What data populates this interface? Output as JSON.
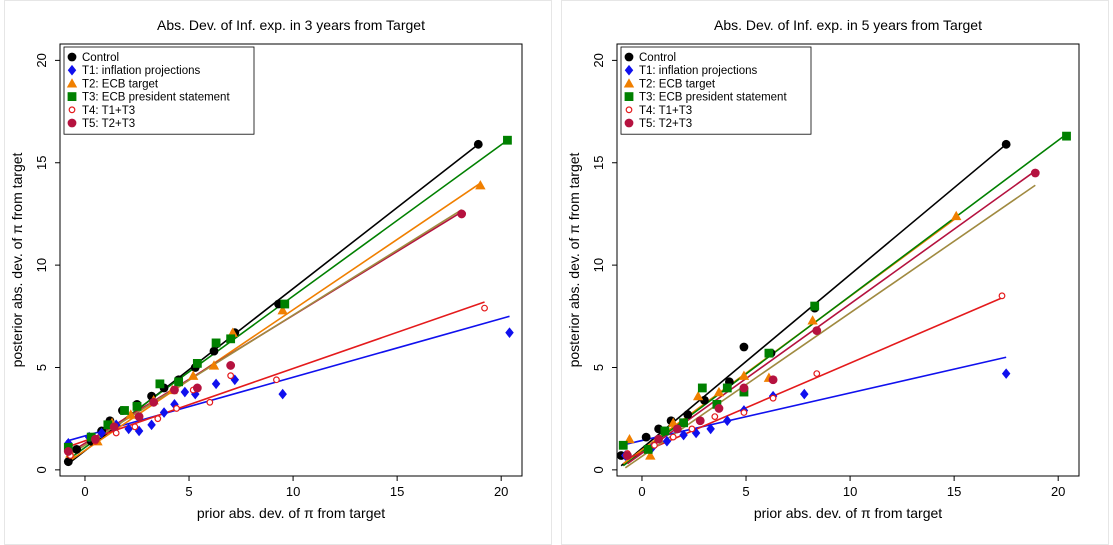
{
  "chart_data": [
    {
      "type": "scatter",
      "title": "Abs. Dev. of Inf. exp. in 3 years from Target",
      "xlabel": "prior abs. dev. of π from target",
      "ylabel": "posterior abs. dev. of π from target",
      "xlim": [
        -1.2,
        21
      ],
      "ylim": [
        -0.3,
        20.8
      ],
      "xticks": [
        0,
        5,
        10,
        15,
        20
      ],
      "yticks": [
        0,
        5,
        10,
        15,
        20
      ],
      "grid": false,
      "legend_position": "top-left",
      "series": [
        {
          "name": "Control",
          "color": "#000000",
          "marker": "circle",
          "points": [
            [
              -0.8,
              0.4
            ],
            [
              -0.4,
              1.0
            ],
            [
              0.3,
              1.4
            ],
            [
              0.8,
              1.9
            ],
            [
              1.2,
              2.4
            ],
            [
              1.8,
              2.9
            ],
            [
              2.5,
              3.2
            ],
            [
              3.2,
              3.6
            ],
            [
              3.8,
              4.0
            ],
            [
              4.5,
              4.4
            ],
            [
              5.3,
              5.0
            ],
            [
              6.2,
              5.8
            ],
            [
              7.2,
              6.7
            ],
            [
              9.3,
              8.1
            ],
            [
              18.9,
              15.9
            ]
          ],
          "fit": [
            [
              -0.8,
              0.3
            ],
            [
              18.9,
              15.9
            ]
          ]
        },
        {
          "name": "T1: inflation projections",
          "color": "#1010ee",
          "marker": "diamond",
          "points": [
            [
              -0.8,
              1.3
            ],
            [
              0.2,
              1.6
            ],
            [
              0.8,
              1.8
            ],
            [
              1.5,
              2.2
            ],
            [
              2.1,
              2.0
            ],
            [
              2.6,
              1.9
            ],
            [
              3.2,
              2.2
            ],
            [
              3.8,
              2.8
            ],
            [
              4.3,
              3.2
            ],
            [
              4.8,
              3.8
            ],
            [
              5.3,
              3.7
            ],
            [
              6.3,
              4.2
            ],
            [
              7.2,
              4.4
            ],
            [
              9.5,
              3.7
            ],
            [
              20.4,
              6.7
            ]
          ],
          "fit": [
            [
              -0.9,
              1.4
            ],
            [
              20.4,
              7.5
            ]
          ]
        },
        {
          "name": "T2: ECB target",
          "color": "#f07f00",
          "marker": "triangle",
          "points": [
            [
              -0.7,
              0.8
            ],
            [
              0.6,
              1.4
            ],
            [
              1.3,
              2.3
            ],
            [
              2.2,
              2.7
            ],
            [
              3.3,
              3.4
            ],
            [
              4.2,
              3.9
            ],
            [
              5.2,
              4.6
            ],
            [
              6.2,
              5.1
            ],
            [
              7.1,
              6.7
            ],
            [
              9.5,
              7.8
            ],
            [
              19.0,
              13.9
            ]
          ],
          "fit": [
            [
              -0.8,
              0.4
            ],
            [
              19.0,
              14.0
            ]
          ]
        },
        {
          "name": "T3: ECB president statement",
          "color": "#008000",
          "marker": "square",
          "points": [
            [
              -0.8,
              1.1
            ],
            [
              0.3,
              1.6
            ],
            [
              1.1,
              2.2
            ],
            [
              1.9,
              2.9
            ],
            [
              2.5,
              3.1
            ],
            [
              3.6,
              4.2
            ],
            [
              4.5,
              4.3
            ],
            [
              5.4,
              5.2
            ],
            [
              6.3,
              6.2
            ],
            [
              7.0,
              6.4
            ],
            [
              9.6,
              8.1
            ],
            [
              20.3,
              16.1
            ]
          ],
          "fit": [
            [
              -0.8,
              0.5
            ],
            [
              20.3,
              16.1
            ]
          ]
        },
        {
          "name": "T4: T1+T3",
          "color": "#e41a1c",
          "marker": "hollow-circle",
          "points": [
            [
              -0.7,
              0.7
            ],
            [
              0.5,
              1.4
            ],
            [
              1.5,
              1.8
            ],
            [
              2.4,
              2.1
            ],
            [
              3.5,
              2.5
            ],
            [
              4.4,
              3.0
            ],
            [
              5.2,
              3.9
            ],
            [
              6.0,
              3.3
            ],
            [
              7.0,
              4.6
            ],
            [
              9.2,
              4.4
            ],
            [
              19.2,
              7.9
            ]
          ],
          "fit": [
            [
              -0.9,
              1.1
            ],
            [
              19.2,
              8.2
            ]
          ]
        },
        {
          "name": "T5: T2+T3",
          "color": "#b5123f",
          "marker": "circle",
          "points": [
            [
              -0.8,
              0.9
            ],
            [
              0.5,
              1.5
            ],
            [
              1.4,
              2.1
            ],
            [
              2.6,
              2.6
            ],
            [
              3.3,
              3.3
            ],
            [
              4.3,
              3.9
            ],
            [
              5.4,
              4.0
            ],
            [
              7.0,
              5.1
            ],
            [
              18.1,
              12.5
            ]
          ],
          "fit": [
            [
              -0.8,
              0.8
            ],
            [
              18.1,
              12.6
            ]
          ]
        },
        {
          "name": "",
          "color": "#a08a40",
          "marker": "none",
          "points": [],
          "fit": [
            [
              -0.8,
              0.7
            ],
            [
              18.1,
              12.7
            ]
          ]
        }
      ]
    },
    {
      "type": "scatter",
      "title": "Abs. Dev. of Inf. exp. in 5 years from Target",
      "xlabel": "prior abs. dev. of π from target",
      "ylabel": "posterior abs. dev. of π from target",
      "xlim": [
        -1.2,
        21
      ],
      "ylim": [
        -0.3,
        20.8
      ],
      "xticks": [
        0,
        5,
        10,
        15,
        20
      ],
      "yticks": [
        0,
        5,
        10,
        15,
        20
      ],
      "grid": false,
      "legend_position": "top-left",
      "series": [
        {
          "name": "Control",
          "color": "#000000",
          "marker": "circle",
          "points": [
            [
              -1.0,
              0.7
            ],
            [
              0.2,
              1.6
            ],
            [
              0.8,
              2.0
            ],
            [
              1.4,
              2.4
            ],
            [
              2.2,
              2.7
            ],
            [
              3.0,
              3.4
            ],
            [
              4.2,
              4.3
            ],
            [
              4.9,
              6.0
            ],
            [
              6.2,
              5.7
            ],
            [
              8.3,
              7.9
            ],
            [
              17.5,
              15.9
            ]
          ],
          "fit": [
            [
              -1.0,
              0.2
            ],
            [
              17.5,
              15.9
            ]
          ]
        },
        {
          "name": "T1: inflation projections",
          "color": "#1010ee",
          "marker": "diamond",
          "points": [
            [
              -0.8,
              0.7
            ],
            [
              0.5,
              1.1
            ],
            [
              1.2,
              1.4
            ],
            [
              2.0,
              1.7
            ],
            [
              2.6,
              1.8
            ],
            [
              3.3,
              2.0
            ],
            [
              4.1,
              2.4
            ],
            [
              4.9,
              2.9
            ],
            [
              6.3,
              3.6
            ],
            [
              7.8,
              3.7
            ],
            [
              17.5,
              4.7
            ]
          ],
          "fit": [
            [
              -1.0,
              1.2
            ],
            [
              17.5,
              5.5
            ]
          ]
        },
        {
          "name": "T2: ECB target",
          "color": "#f07f00",
          "marker": "triangle",
          "points": [
            [
              -0.6,
              1.5
            ],
            [
              0.4,
              0.7
            ],
            [
              1.5,
              2.3
            ],
            [
              2.7,
              3.6
            ],
            [
              3.7,
              3.8
            ],
            [
              4.9,
              4.6
            ],
            [
              6.1,
              4.5
            ],
            [
              8.2,
              7.3
            ],
            [
              15.1,
              12.4
            ]
          ],
          "fit": [
            [
              -0.9,
              0.3
            ],
            [
              15.1,
              12.3
            ]
          ]
        },
        {
          "name": "T3: ECB president statement",
          "color": "#008000",
          "marker": "square",
          "points": [
            [
              -0.9,
              1.2
            ],
            [
              0.3,
              1.0
            ],
            [
              1.1,
              1.9
            ],
            [
              2.0,
              2.3
            ],
            [
              2.9,
              4.0
            ],
            [
              3.6,
              3.2
            ],
            [
              4.1,
              4.0
            ],
            [
              4.9,
              3.8
            ],
            [
              6.1,
              5.7
            ],
            [
              8.3,
              8.0
            ],
            [
              20.4,
              16.3
            ]
          ],
          "fit": [
            [
              -0.9,
              0.2
            ],
            [
              20.4,
              16.4
            ]
          ]
        },
        {
          "name": "T4: T1+T3",
          "color": "#e41a1c",
          "marker": "hollow-circle",
          "points": [
            [
              -0.7,
              0.8
            ],
            [
              0.6,
              1.2
            ],
            [
              1.5,
              1.6
            ],
            [
              2.4,
              2.0
            ],
            [
              3.5,
              2.6
            ],
            [
              4.9,
              2.8
            ],
            [
              6.3,
              3.5
            ],
            [
              8.4,
              4.7
            ],
            [
              17.3,
              8.5
            ]
          ],
          "fit": [
            [
              -0.8,
              0.5
            ],
            [
              17.3,
              8.4
            ]
          ]
        },
        {
          "name": "T5: T2+T3",
          "color": "#b5123f",
          "marker": "circle",
          "points": [
            [
              -0.7,
              0.7
            ],
            [
              0.8,
              1.5
            ],
            [
              1.7,
              2.0
            ],
            [
              2.8,
              2.4
            ],
            [
              3.7,
              3.0
            ],
            [
              4.9,
              4.0
            ],
            [
              6.3,
              4.4
            ],
            [
              8.4,
              6.8
            ],
            [
              18.9,
              14.5
            ]
          ],
          "fit": [
            [
              -0.7,
              0.3
            ],
            [
              18.9,
              14.6
            ]
          ]
        },
        {
          "name": "",
          "color": "#a08a40",
          "marker": "none",
          "points": [],
          "fit": [
            [
              -0.8,
              0.1
            ],
            [
              18.9,
              13.9
            ]
          ]
        }
      ]
    }
  ]
}
